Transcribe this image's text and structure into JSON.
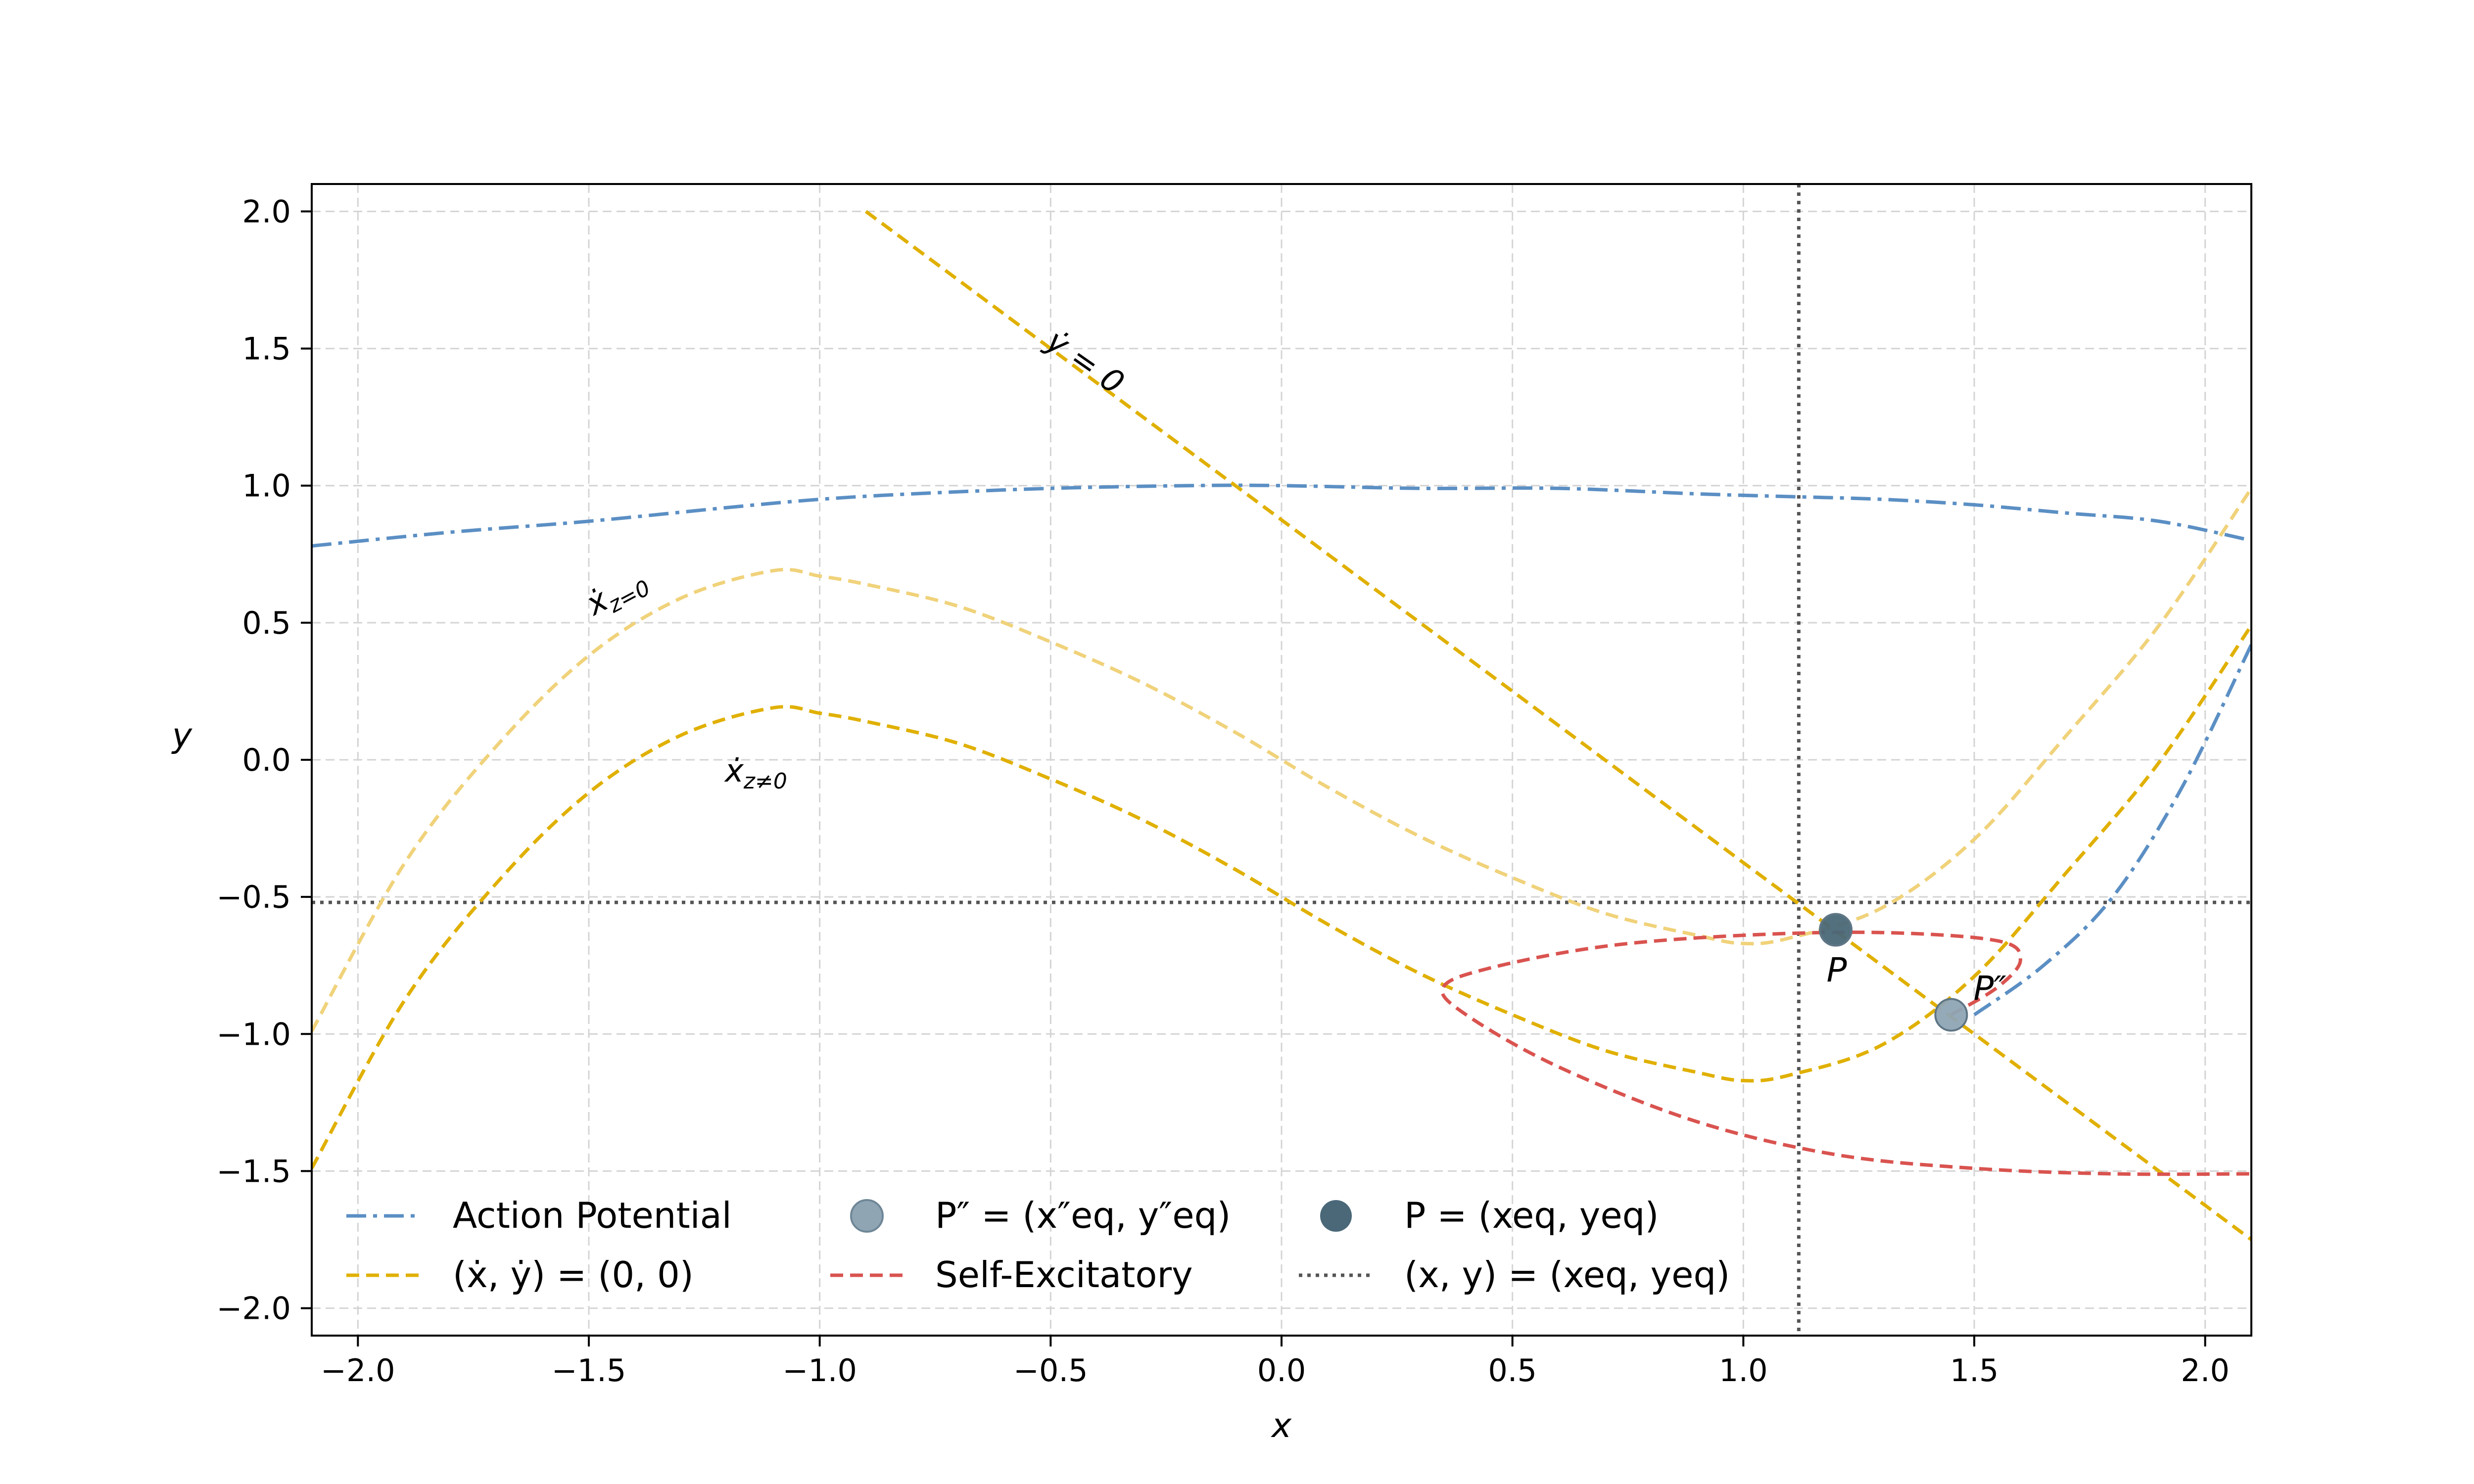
{
  "chart_data": {
    "type": "line",
    "title": "",
    "xlabel": "x",
    "ylabel": "y",
    "xlim": [
      -2.1,
      2.1
    ],
    "ylim": [
      -2.1,
      2.1
    ],
    "grid": true,
    "legend_placement": "lower-left",
    "x_ticks": [
      "−2.0",
      "−1.5",
      "−1.0",
      "−0.5",
      "0.0",
      "0.5",
      "1.0",
      "1.5",
      "2.0"
    ],
    "y_ticks": [
      "2.0",
      "1.5",
      "1.0",
      "0.5",
      "0.0",
      "−0.5",
      "−1.0",
      "−1.5",
      "−2.0"
    ],
    "x_tick_values": [
      -2.0,
      -1.5,
      -1.0,
      -0.5,
      0.0,
      0.5,
      1.0,
      1.5,
      2.0
    ],
    "y_tick_values": [
      2.0,
      1.5,
      1.0,
      0.5,
      0.0,
      -0.5,
      -1.0,
      -1.5,
      -2.0
    ],
    "series": [
      {
        "name": "Action Potential",
        "style": "dashdot",
        "color": "#5b8fc4",
        "x": [
          -2.1,
          -1.8,
          -1.5,
          -1.2,
          -1.0,
          -0.8,
          -0.5,
          -0.2,
          0.0,
          0.3,
          0.6,
          0.9,
          1.1,
          1.3,
          1.5,
          1.7,
          1.9,
          2.1
        ],
        "y": [
          0.78,
          0.83,
          0.87,
          0.92,
          0.95,
          0.97,
          0.99,
          1.0,
          1.0,
          0.99,
          0.99,
          0.97,
          0.96,
          0.95,
          0.93,
          0.9,
          0.87,
          0.8
        ]
      },
      {
        "name": "Action Potential branch",
        "style": "dashdot",
        "color": "#5b8fc4",
        "x": [
          1.5,
          1.65,
          1.8,
          1.95,
          2.1
        ],
        "y": [
          -0.93,
          -0.75,
          -0.5,
          -0.1,
          0.42
        ]
      },
      {
        "name": "(ẋ, ẏ) = (0, 0)",
        "label": "ẏ = 0",
        "style": "dashed",
        "color": "#e0b000",
        "x": [
          -0.9,
          2.1
        ],
        "y": [
          2.0,
          -1.75
        ]
      },
      {
        "name": "(ẋ, ẏ) = (0, 0)",
        "label": "ẋ z=0",
        "style": "dashed",
        "color": "#f0d27a",
        "x": [
          -2.1,
          -1.9,
          -1.7,
          -1.5,
          -1.3,
          -1.1,
          -1.0,
          -0.9,
          -0.7,
          -0.5,
          -0.3,
          -0.1,
          0.1,
          0.3,
          0.5,
          0.7,
          0.9,
          1.0,
          1.1,
          1.3,
          1.5,
          1.7,
          1.9,
          2.1
        ],
        "y": [
          -0.99,
          -0.38,
          0.05,
          0.38,
          0.59,
          0.69,
          0.67,
          0.64,
          0.56,
          0.43,
          0.28,
          0.1,
          -0.1,
          -0.28,
          -0.43,
          -0.56,
          -0.64,
          -0.67,
          -0.65,
          -0.54,
          -0.29,
          0.09,
          0.49,
          0.99
        ]
      },
      {
        "name": "(ẋ, ẏ) = (0, 0)",
        "label": "ẋ z≠0",
        "style": "dashed",
        "color": "#e0b000",
        "x": [
          -2.1,
          -1.9,
          -1.7,
          -1.5,
          -1.3,
          -1.1,
          -1.0,
          -0.9,
          -0.7,
          -0.5,
          -0.3,
          -0.1,
          0.1,
          0.3,
          0.5,
          0.7,
          0.9,
          1.0,
          1.1,
          1.3,
          1.5,
          1.7,
          1.9,
          2.1
        ],
        "y": [
          -1.49,
          -0.88,
          -0.45,
          -0.12,
          0.09,
          0.19,
          0.17,
          0.14,
          0.06,
          -0.07,
          -0.22,
          -0.4,
          -0.6,
          -0.78,
          -0.93,
          -1.06,
          -1.14,
          -1.17,
          -1.15,
          -1.04,
          -0.79,
          -0.41,
          -0.01,
          0.49
        ]
      },
      {
        "name": "Self-Excitatory",
        "style": "dashed",
        "color": "#d9534f",
        "x": [
          1.45,
          1.55,
          1.6,
          1.55,
          1.3,
          1.0,
          0.7,
          0.45,
          0.35,
          0.4,
          0.6,
          0.9,
          1.2,
          1.5,
          1.8,
          2.1
        ],
        "y": [
          -0.93,
          -0.83,
          -0.73,
          -0.66,
          -0.63,
          -0.64,
          -0.68,
          -0.76,
          -0.83,
          -0.93,
          -1.12,
          -1.32,
          -1.44,
          -1.49,
          -1.51,
          -1.51
        ]
      }
    ],
    "points": [
      {
        "name": "P = (x_eq, y_eq)",
        "label": "P",
        "x": 1.2,
        "y": -0.62,
        "color": "#4a6878"
      },
      {
        "name": "P″ = (x″_eq, y″_eq)",
        "label": "P″",
        "x": 1.45,
        "y": -0.93,
        "color": "#8fa5b4"
      }
    ],
    "reference_lines": {
      "name": "(x, y) = (x_eq, y_eq)",
      "x": 1.12,
      "y": -0.52,
      "color": "#555555"
    },
    "legend": [
      [
        "Action Potential",
        "P″ = (x″eq, y″eq)",
        "P = (xeq, yeq)"
      ],
      [
        "(ẋ, ẏ) = (0, 0)",
        "Self-Excitatory",
        "(x, y) = (xeq, yeq)"
      ]
    ]
  }
}
